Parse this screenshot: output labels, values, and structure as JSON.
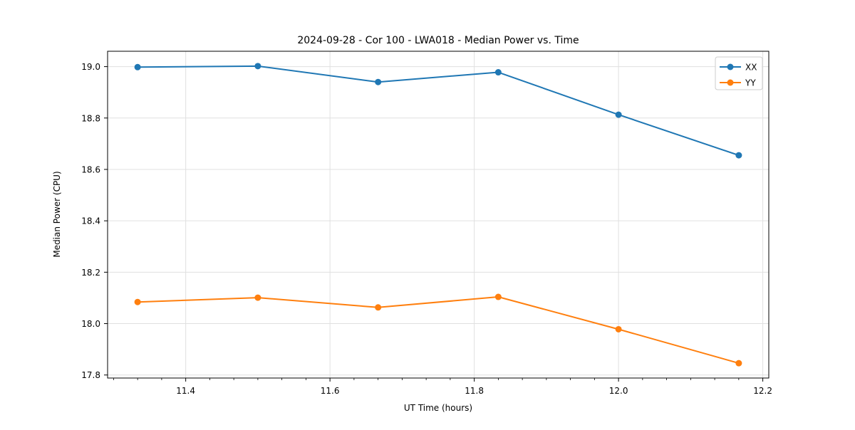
{
  "chart_data": {
    "type": "line",
    "title": "2024-09-28 - Cor 100 - LWA018 - Median Power vs. Time",
    "xlabel": "UT Time (hours)",
    "ylabel": "Median Power (CPU)",
    "x": [
      11.3333,
      11.5,
      11.6667,
      11.8333,
      12.0,
      12.1667
    ],
    "series": [
      {
        "name": "XX",
        "color": "#1f77b4",
        "values": [
          18.998,
          19.002,
          18.94,
          18.978,
          18.813,
          18.655
        ]
      },
      {
        "name": "YY",
        "color": "#ff7f0e",
        "values": [
          18.084,
          18.101,
          18.063,
          18.104,
          17.978,
          17.846
        ]
      }
    ],
    "xlim": [
      11.2917,
      12.2083
    ],
    "ylim": [
      17.7882,
      19.0598
    ],
    "xticks": [
      11.4,
      11.6,
      11.8,
      12.0,
      12.2
    ],
    "yticks": [
      17.8,
      18.0,
      18.2,
      18.4,
      18.6,
      18.8,
      19.0
    ],
    "x_minor_divisions": 6,
    "grid": true,
    "legend": {
      "position": "upper right",
      "entries": [
        "XX",
        "YY"
      ]
    }
  },
  "colors": {
    "background": "#ffffff",
    "grid": "#e0e0e0",
    "spine": "#000000",
    "legend_border": "#cccccc",
    "series_xx": "#1f77b4",
    "series_yy": "#ff7f0e"
  }
}
